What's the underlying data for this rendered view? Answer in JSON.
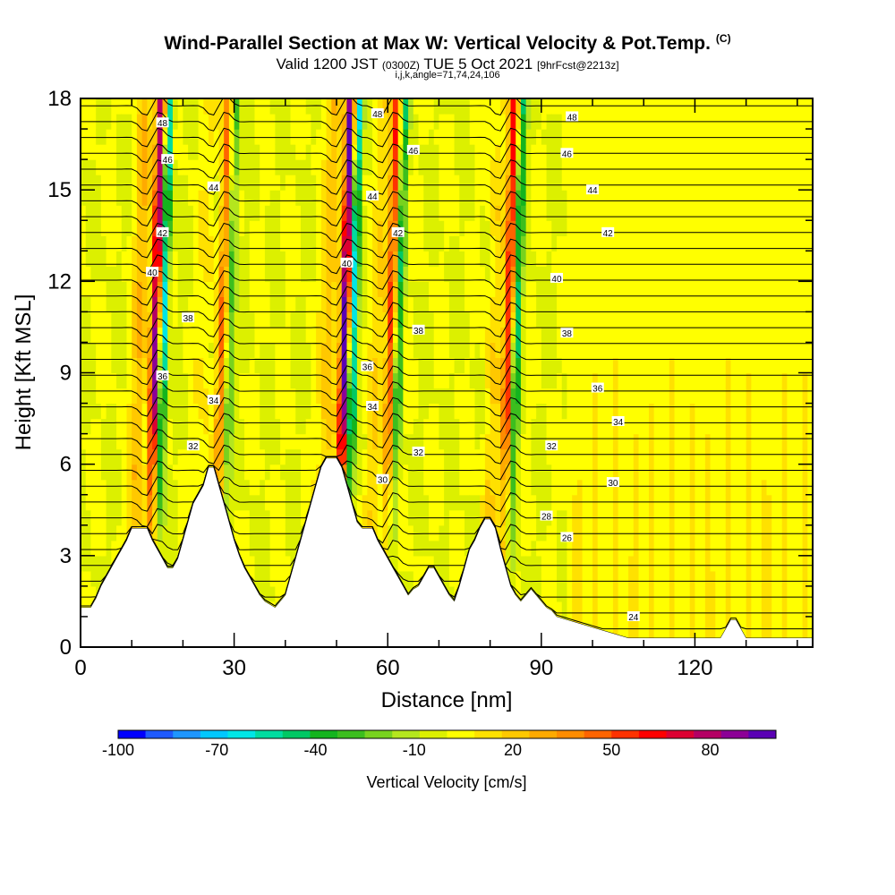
{
  "title": {
    "main": "Wind-Parallel Section at Max W: Vertical Velocity & Pot.Temp.",
    "corner": "(C)",
    "sub_a": "Valid 1200 JST",
    "sub_b": "(0300Z)",
    "sub_c": "TUE 5 Oct 2021",
    "sub_d": "[9hrFcst@2213z]",
    "params": "i,j,k,angle=71,74,24,106"
  },
  "chart_data": {
    "type": "heatmap",
    "xlabel": "Distance [nm]",
    "ylabel": "Height [Kft MSL]",
    "xlim": [
      0,
      143
    ],
    "ylim": [
      0,
      18
    ],
    "x_ticks": [
      "0",
      "30",
      "60",
      "90",
      "120"
    ],
    "x_tick_values": [
      0,
      30,
      60,
      90,
      120
    ],
    "y_ticks": [
      "0",
      "3",
      "6",
      "9",
      "12",
      "15",
      "18"
    ],
    "y_tick_values": [
      0,
      3,
      6,
      9,
      12,
      15,
      18
    ],
    "colorbar": {
      "title": "Vertical Velocity [cm/s]",
      "labels": [
        "-100",
        "-70",
        "-40",
        "-10",
        "20",
        "50",
        "80"
      ],
      "label_values": [
        -100,
        -70,
        -40,
        -10,
        20,
        50,
        80
      ],
      "range": [
        -100,
        100
      ],
      "colors": [
        "#0000ff",
        "#1e5aff",
        "#1e96ff",
        "#00c8ff",
        "#00e6e6",
        "#00dca0",
        "#00c864",
        "#14b41e",
        "#3cbe1e",
        "#78d21e",
        "#b4e61e",
        "#dcf000",
        "#ffff00",
        "#ffe100",
        "#ffc800",
        "#ffaa00",
        "#ff8c00",
        "#ff6400",
        "#ff3200",
        "#ff0000",
        "#dc0032",
        "#b40064",
        "#8c0096",
        "#5a00b4"
      ]
    },
    "updraft_bands": [
      {
        "x_center": 14,
        "strength": 90
      },
      {
        "x_center": 27,
        "strength": 40
      },
      {
        "x_center": 51,
        "strength": 95
      },
      {
        "x_center": 60,
        "strength": 55
      },
      {
        "x_center": 83,
        "strength": 60
      }
    ],
    "theta_contour_labels": [
      {
        "x": 16,
        "y": 17.2,
        "text": "48"
      },
      {
        "x": 17,
        "y": 16.0,
        "text": "46"
      },
      {
        "x": 26,
        "y": 15.1,
        "text": "44"
      },
      {
        "x": 16,
        "y": 13.6,
        "text": "42"
      },
      {
        "x": 14,
        "y": 12.3,
        "text": "40"
      },
      {
        "x": 21,
        "y": 10.8,
        "text": "38"
      },
      {
        "x": 16,
        "y": 8.9,
        "text": "36"
      },
      {
        "x": 26,
        "y": 8.1,
        "text": "34"
      },
      {
        "x": 22,
        "y": 6.6,
        "text": "32"
      },
      {
        "x": 58,
        "y": 17.5,
        "text": "48"
      },
      {
        "x": 65,
        "y": 16.3,
        "text": "46"
      },
      {
        "x": 57,
        "y": 14.8,
        "text": "44"
      },
      {
        "x": 62,
        "y": 13.6,
        "text": "42"
      },
      {
        "x": 52,
        "y": 12.6,
        "text": "40"
      },
      {
        "x": 66,
        "y": 10.4,
        "text": "38"
      },
      {
        "x": 56,
        "y": 9.2,
        "text": "36"
      },
      {
        "x": 57,
        "y": 7.9,
        "text": "34"
      },
      {
        "x": 66,
        "y": 6.4,
        "text": "32"
      },
      {
        "x": 59,
        "y": 5.5,
        "text": "30"
      },
      {
        "x": 96,
        "y": 17.4,
        "text": "48"
      },
      {
        "x": 95,
        "y": 16.2,
        "text": "46"
      },
      {
        "x": 100,
        "y": 15.0,
        "text": "44"
      },
      {
        "x": 103,
        "y": 13.6,
        "text": "42"
      },
      {
        "x": 93,
        "y": 12.1,
        "text": "40"
      },
      {
        "x": 95,
        "y": 10.3,
        "text": "38"
      },
      {
        "x": 101,
        "y": 8.5,
        "text": "36"
      },
      {
        "x": 105,
        "y": 7.4,
        "text": "34"
      },
      {
        "x": 92,
        "y": 6.6,
        "text": "32"
      },
      {
        "x": 104,
        "y": 5.4,
        "text": "30"
      },
      {
        "x": 91,
        "y": 4.3,
        "text": "28"
      },
      {
        "x": 95,
        "y": 3.6,
        "text": "26"
      },
      {
        "x": 108,
        "y": 1.0,
        "text": "24"
      }
    ],
    "terrain_profile": [
      [
        0,
        1.3
      ],
      [
        2,
        1.3
      ],
      [
        3,
        1.6
      ],
      [
        4,
        2.0
      ],
      [
        5,
        2.3
      ],
      [
        6,
        2.6
      ],
      [
        7,
        2.9
      ],
      [
        8,
        3.2
      ],
      [
        9,
        3.5
      ],
      [
        10,
        3.9
      ],
      [
        13,
        3.9
      ],
      [
        14,
        3.5
      ],
      [
        15,
        3.2
      ],
      [
        16,
        2.9
      ],
      [
        17,
        2.6
      ],
      [
        18,
        2.6
      ],
      [
        19,
        2.9
      ],
      [
        20,
        3.5
      ],
      [
        21,
        4.1
      ],
      [
        22,
        4.7
      ],
      [
        23,
        5.0
      ],
      [
        24,
        5.3
      ],
      [
        25,
        5.9
      ],
      [
        26,
        5.9
      ],
      [
        27,
        5.3
      ],
      [
        28,
        4.7
      ],
      [
        29,
        4.1
      ],
      [
        30,
        3.5
      ],
      [
        31,
        3.0
      ],
      [
        32,
        2.6
      ],
      [
        33,
        2.3
      ],
      [
        34,
        2.0
      ],
      [
        35,
        1.7
      ],
      [
        36,
        1.5
      ],
      [
        38,
        1.3
      ],
      [
        39,
        1.5
      ],
      [
        40,
        1.7
      ],
      [
        41,
        2.3
      ],
      [
        42,
        2.9
      ],
      [
        43,
        3.5
      ],
      [
        44,
        4.1
      ],
      [
        45,
        4.7
      ],
      [
        46,
        5.3
      ],
      [
        47,
        5.9
      ],
      [
        48,
        6.2
      ],
      [
        50,
        6.2
      ],
      [
        51,
        5.9
      ],
      [
        52,
        5.3
      ],
      [
        53,
        4.7
      ],
      [
        54,
        4.1
      ],
      [
        55,
        3.9
      ],
      [
        57,
        3.9
      ],
      [
        58,
        3.5
      ],
      [
        59,
        3.2
      ],
      [
        60,
        2.9
      ],
      [
        61,
        2.6
      ],
      [
        62,
        2.3
      ],
      [
        63,
        2.0
      ],
      [
        64,
        1.7
      ],
      [
        65,
        1.9
      ],
      [
        66,
        2.0
      ],
      [
        67,
        2.3
      ],
      [
        68,
        2.6
      ],
      [
        69,
        2.6
      ],
      [
        70,
        2.3
      ],
      [
        71,
        2.0
      ],
      [
        72,
        1.7
      ],
      [
        73,
        1.5
      ],
      [
        74,
        2.0
      ],
      [
        75,
        2.6
      ],
      [
        76,
        3.2
      ],
      [
        77,
        3.5
      ],
      [
        78,
        3.9
      ],
      [
        79,
        4.2
      ],
      [
        80,
        4.2
      ],
      [
        81,
        3.9
      ],
      [
        82,
        3.2
      ],
      [
        83,
        2.6
      ],
      [
        84,
        2.0
      ],
      [
        85,
        1.7
      ],
      [
        86,
        1.5
      ],
      [
        87,
        1.7
      ],
      [
        88,
        1.9
      ],
      [
        89,
        1.7
      ],
      [
        90,
        1.5
      ],
      [
        91,
        1.3
      ],
      [
        92,
        1.2
      ],
      [
        93,
        1.0
      ],
      [
        95,
        0.9
      ],
      [
        97,
        0.8
      ],
      [
        99,
        0.7
      ],
      [
        101,
        0.6
      ],
      [
        103,
        0.5
      ],
      [
        105,
        0.4
      ],
      [
        107,
        0.3
      ],
      [
        125,
        0.3
      ],
      [
        126,
        0.6
      ],
      [
        127,
        0.9
      ],
      [
        128,
        0.9
      ],
      [
        129,
        0.6
      ],
      [
        130,
        0.3
      ],
      [
        143,
        0.3
      ]
    ]
  }
}
